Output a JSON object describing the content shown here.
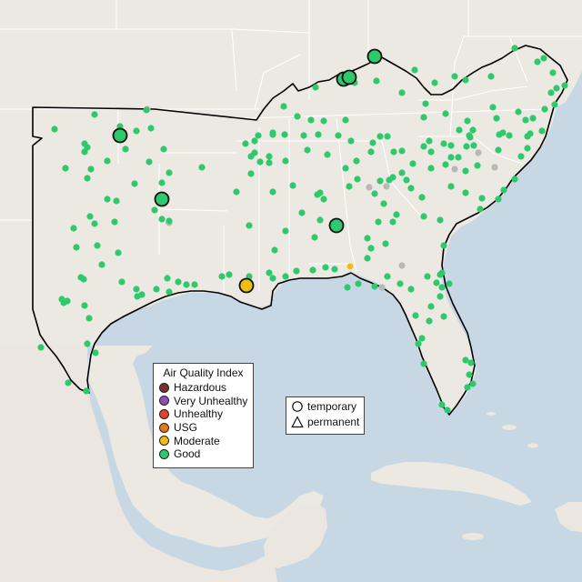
{
  "map": {
    "colors": {
      "water": "#c7d7e4",
      "land": "#ece8e2",
      "outside_land": "#ebe6df",
      "state_lines": "#ffffff",
      "region_outline": "#000000"
    }
  },
  "legend": {
    "aqi": {
      "title": "Air Quality Index",
      "items": [
        {
          "label": "Hazardous",
          "color": "#7b3030"
        },
        {
          "label": "Very Unhealthy",
          "color": "#8e50b4"
        },
        {
          "label": "Unhealthy",
          "color": "#e4422b"
        },
        {
          "label": "USG",
          "color": "#e2771e"
        },
        {
          "label": "Moderate",
          "color": "#f1bd14"
        },
        {
          "label": "Good",
          "color": "#2ec96d"
        }
      ]
    },
    "monitor_type": {
      "items": [
        {
          "label": "temporary",
          "shape": "circle"
        },
        {
          "label": "permanent",
          "shape": "triangle"
        }
      ]
    }
  },
  "monitors": {
    "no_data_color": "#b8b8b8"
  }
}
